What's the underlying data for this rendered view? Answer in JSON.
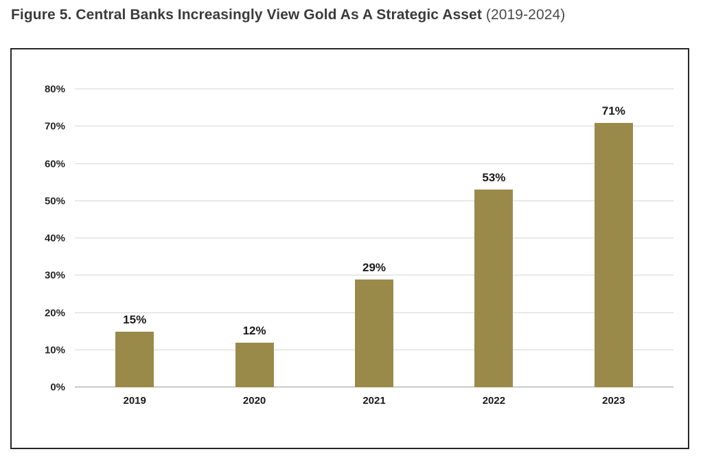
{
  "page": {
    "title_bold": "Figure 5. Central Banks Increasingly View Gold As A Strategic Asset",
    "title_suffix": " (2019-2024)"
  },
  "chart_data": {
    "type": "bar",
    "title": "Figure 5. Central Banks Increasingly View Gold As A Strategic Asset (2019-2024)",
    "categories": [
      "2019",
      "2020",
      "2021",
      "2022",
      "2023"
    ],
    "values": [
      15,
      12,
      29,
      53,
      71
    ],
    "value_labels": [
      "15%",
      "12%",
      "29%",
      "53%",
      "71%"
    ],
    "xlabel": "",
    "ylabel": "",
    "ylim": [
      0,
      80
    ],
    "ytick_step": 10,
    "ytick_labels": [
      "0%",
      "10%",
      "20%",
      "30%",
      "40%",
      "50%",
      "60%",
      "70%",
      "80%"
    ],
    "grid": true,
    "legend_position": "none",
    "bar_color": "#9a8a4a"
  }
}
